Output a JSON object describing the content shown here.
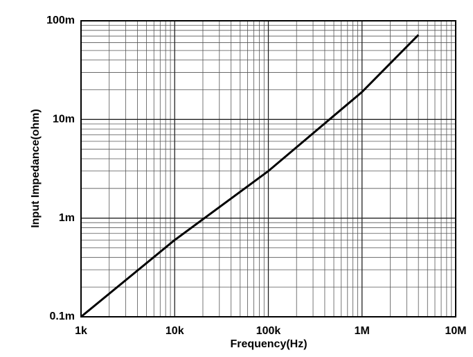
{
  "chart_data": {
    "type": "line",
    "x_label": "Frequency(Hz)",
    "y_label": "Input Impedance(ohm)",
    "x": [
      1000,
      10000,
      100000,
      1000000,
      4000000
    ],
    "series": [
      {
        "color": "#000000",
        "values": [
          0.0001,
          0.0006,
          0.003,
          0.019,
          0.072
        ]
      }
    ],
    "xlim": [
      1000,
      10000000
    ],
    "xticks": [
      {
        "value": 1000,
        "label": "1k"
      },
      {
        "value": 10000,
        "label": "10k"
      },
      {
        "value": 100000,
        "label": "100k"
      },
      {
        "value": 1000000,
        "label": "1M"
      },
      {
        "value": 10000000,
        "label": "10M"
      }
    ],
    "ylim": [
      0.0001,
      0.1
    ],
    "yticks": [
      {
        "value": 0.0001,
        "label": "0.1m"
      },
      {
        "value": 0.001,
        "label": "1m"
      },
      {
        "value": 0.01,
        "label": "10m"
      },
      {
        "value": 0.1,
        "label": "100m"
      }
    ],
    "xscale": "log",
    "yscale": "log",
    "grid": true,
    "minor_grid": true
  }
}
